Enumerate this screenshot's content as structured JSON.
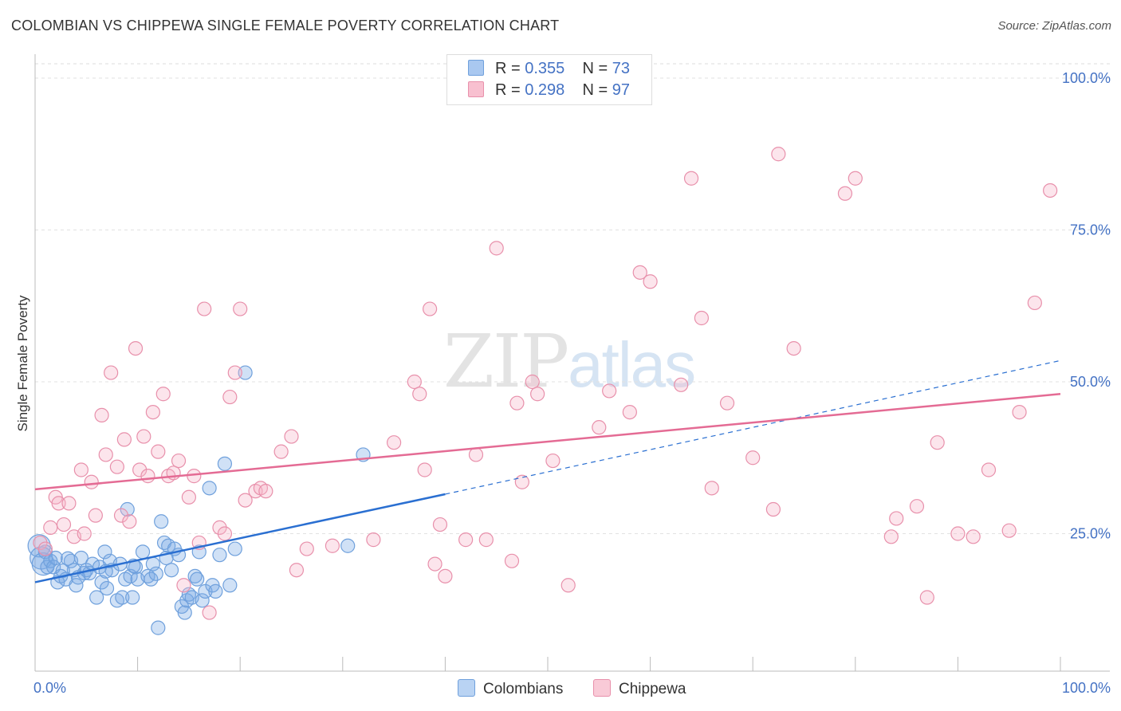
{
  "title": "COLOMBIAN VS CHIPPEWA SINGLE FEMALE POVERTY CORRELATION CHART",
  "source": "Source: ZipAtlas.com",
  "watermark": {
    "zip": "ZIP",
    "atlas": "atlas"
  },
  "legend": {
    "rows": [
      {
        "r_label": "R =",
        "r_value": "0.355",
        "n_label": "N =",
        "n_value": "73",
        "color": "#a9c8f0",
        "border": "#6fa0dc"
      },
      {
        "r_label": "R =",
        "r_value": "0.298",
        "n_label": "N =",
        "n_value": "97",
        "color": "#f8c0d0",
        "border": "#e890ab"
      }
    ]
  },
  "bottom_legend": [
    {
      "label": "Colombians",
      "color": "#b9d3f3",
      "border": "#6fa0dc"
    },
    {
      "label": "Chippewa",
      "color": "#f9cad7",
      "border": "#e890ab"
    }
  ],
  "chart_data": {
    "type": "scatter",
    "title": "COLOMBIAN VS CHIPPEWA SINGLE FEMALE POVERTY CORRELATION CHART",
    "xlabel": "",
    "ylabel": "Single Female Poverty",
    "xlim": [
      0,
      100
    ],
    "ylim": [
      0,
      100
    ],
    "x_tick_labels": [
      "0.0%",
      "100.0%"
    ],
    "y_tick_labels": [
      {
        "value": 25,
        "label": "25.0%"
      },
      {
        "value": 50,
        "label": "50.0%"
      },
      {
        "value": 75,
        "label": "75.0%"
      },
      {
        "value": 100,
        "label": "100.0%"
      }
    ],
    "series": [
      {
        "name": "Colombians",
        "color": "#6fa0dc",
        "fill": "rgba(120,170,230,0.35)",
        "trend": {
          "x0": 0,
          "y0": 17.0,
          "x1": 40,
          "y1": 31.5,
          "dash_to_x": 100,
          "dash_to_y": 53.5,
          "color": "#2a6fd1"
        },
        "points": [
          [
            0.4,
            23.0
          ],
          [
            0.6,
            21.0
          ],
          [
            0.8,
            20.0
          ],
          [
            1.0,
            22.0
          ],
          [
            1.2,
            19.5
          ],
          [
            1.5,
            20.5
          ],
          [
            1.8,
            19.5
          ],
          [
            2.0,
            21.0
          ],
          [
            2.2,
            17.0
          ],
          [
            2.5,
            18.0
          ],
          [
            3.0,
            17.5
          ],
          [
            3.5,
            20.5
          ],
          [
            3.8,
            19.0
          ],
          [
            4.0,
            16.5
          ],
          [
            4.5,
            21.0
          ],
          [
            4.8,
            18.5
          ],
          [
            5.0,
            19.0
          ],
          [
            5.3,
            18.5
          ],
          [
            5.6,
            20.0
          ],
          [
            6.0,
            14.5
          ],
          [
            6.3,
            19.5
          ],
          [
            6.5,
            17.0
          ],
          [
            6.8,
            22.0
          ],
          [
            7.0,
            16.0
          ],
          [
            7.3,
            20.5
          ],
          [
            7.5,
            19.0
          ],
          [
            8.0,
            14.0
          ],
          [
            8.3,
            20.0
          ],
          [
            8.5,
            14.5
          ],
          [
            8.8,
            17.5
          ],
          [
            9.0,
            29.0
          ],
          [
            9.3,
            18.0
          ],
          [
            9.5,
            14.5
          ],
          [
            9.8,
            19.5
          ],
          [
            10.0,
            17.5
          ],
          [
            10.5,
            22.0
          ],
          [
            11.0,
            18.0
          ],
          [
            11.3,
            17.5
          ],
          [
            11.5,
            20.0
          ],
          [
            12.0,
            9.5
          ],
          [
            12.3,
            27.0
          ],
          [
            12.6,
            23.5
          ],
          [
            12.8,
            21.0
          ],
          [
            13.0,
            23.0
          ],
          [
            13.3,
            19.0
          ],
          [
            13.6,
            22.5
          ],
          [
            14.0,
            21.5
          ],
          [
            14.3,
            13.0
          ],
          [
            14.6,
            12.0
          ],
          [
            14.8,
            14.0
          ],
          [
            15.0,
            15.0
          ],
          [
            15.3,
            14.5
          ],
          [
            15.6,
            18.0
          ],
          [
            15.8,
            17.5
          ],
          [
            16.0,
            22.0
          ],
          [
            16.3,
            14.0
          ],
          [
            16.6,
            15.5
          ],
          [
            17.0,
            32.5
          ],
          [
            17.3,
            16.5
          ],
          [
            17.6,
            15.5
          ],
          [
            18.0,
            21.5
          ],
          [
            18.5,
            36.5
          ],
          [
            19.0,
            16.5
          ],
          [
            19.5,
            22.5
          ],
          [
            20.5,
            51.5
          ],
          [
            30.5,
            23.0
          ],
          [
            32.0,
            38.0
          ],
          [
            9.6,
            19.7
          ],
          [
            4.2,
            17.8
          ],
          [
            6.9,
            18.8
          ],
          [
            11.8,
            18.4
          ],
          [
            3.2,
            20.9
          ],
          [
            2.7,
            18.9
          ]
        ]
      },
      {
        "name": "Chippewa",
        "color": "#e890ab",
        "fill": "rgba(246,180,200,0.35)",
        "trend": {
          "x0": 0,
          "y0": 32.3,
          "x1": 100,
          "y1": 48.0,
          "color": "#e46b94"
        },
        "points": [
          [
            0.5,
            23.5
          ],
          [
            1.0,
            22.5
          ],
          [
            1.5,
            26.0
          ],
          [
            2.0,
            31.0
          ],
          [
            2.3,
            30.0
          ],
          [
            2.8,
            26.5
          ],
          [
            3.3,
            30.0
          ],
          [
            3.8,
            24.5
          ],
          [
            4.5,
            35.5
          ],
          [
            4.8,
            25.0
          ],
          [
            5.5,
            33.5
          ],
          [
            5.9,
            28.0
          ],
          [
            6.5,
            44.5
          ],
          [
            6.9,
            38.0
          ],
          [
            7.4,
            51.5
          ],
          [
            8.0,
            36.0
          ],
          [
            8.4,
            28.0
          ],
          [
            8.7,
            40.5
          ],
          [
            9.2,
            27.0
          ],
          [
            9.8,
            55.5
          ],
          [
            10.2,
            35.5
          ],
          [
            10.6,
            41.0
          ],
          [
            11.0,
            34.5
          ],
          [
            11.5,
            45.0
          ],
          [
            12.0,
            38.5
          ],
          [
            12.5,
            48.0
          ],
          [
            13.0,
            34.5
          ],
          [
            13.5,
            35.0
          ],
          [
            14.0,
            37.0
          ],
          [
            14.5,
            16.5
          ],
          [
            15.0,
            31.0
          ],
          [
            15.5,
            34.5
          ],
          [
            16.0,
            23.5
          ],
          [
            16.5,
            62.0
          ],
          [
            17.0,
            12.0
          ],
          [
            18.0,
            26.0
          ],
          [
            18.5,
            25.0
          ],
          [
            19.0,
            47.5
          ],
          [
            19.5,
            51.5
          ],
          [
            20.0,
            62.0
          ],
          [
            20.5,
            30.5
          ],
          [
            21.5,
            32.0
          ],
          [
            22.0,
            32.5
          ],
          [
            22.5,
            32.0
          ],
          [
            24.0,
            38.5
          ],
          [
            25.0,
            41.0
          ],
          [
            25.5,
            19.0
          ],
          [
            26.5,
            22.5
          ],
          [
            29.0,
            23.0
          ],
          [
            33.0,
            24.0
          ],
          [
            35.0,
            40.0
          ],
          [
            37.0,
            50.0
          ],
          [
            37.5,
            48.0
          ],
          [
            38.0,
            35.5
          ],
          [
            38.5,
            62.0
          ],
          [
            39.0,
            20.0
          ],
          [
            39.5,
            26.5
          ],
          [
            40.0,
            18.0
          ],
          [
            42.0,
            24.0
          ],
          [
            43.0,
            38.0
          ],
          [
            44.0,
            24.0
          ],
          [
            45.0,
            72.0
          ],
          [
            46.5,
            20.5
          ],
          [
            47.0,
            46.5
          ],
          [
            47.5,
            33.5
          ],
          [
            48.5,
            50.0
          ],
          [
            49.0,
            48.0
          ],
          [
            50.5,
            37.0
          ],
          [
            52.0,
            16.5
          ],
          [
            55.0,
            42.5
          ],
          [
            56.0,
            48.5
          ],
          [
            58.0,
            45.0
          ],
          [
            59.0,
            68.0
          ],
          [
            60.0,
            66.5
          ],
          [
            63.0,
            49.5
          ],
          [
            64.0,
            83.5
          ],
          [
            65.0,
            60.5
          ],
          [
            66.0,
            32.5
          ],
          [
            67.5,
            46.5
          ],
          [
            70.0,
            37.5
          ],
          [
            72.0,
            29.0
          ],
          [
            72.5,
            87.5
          ],
          [
            74.0,
            55.5
          ],
          [
            79.0,
            81.0
          ],
          [
            80.0,
            83.5
          ],
          [
            83.5,
            24.5
          ],
          [
            84.0,
            27.5
          ],
          [
            86.0,
            29.5
          ],
          [
            87.0,
            14.5
          ],
          [
            88.0,
            40.0
          ],
          [
            90.0,
            25.0
          ],
          [
            91.5,
            24.5
          ],
          [
            93.0,
            35.5
          ],
          [
            95.0,
            25.5
          ],
          [
            96.0,
            45.0
          ],
          [
            97.5,
            63.0
          ],
          [
            99.0,
            81.5
          ]
        ]
      }
    ]
  }
}
